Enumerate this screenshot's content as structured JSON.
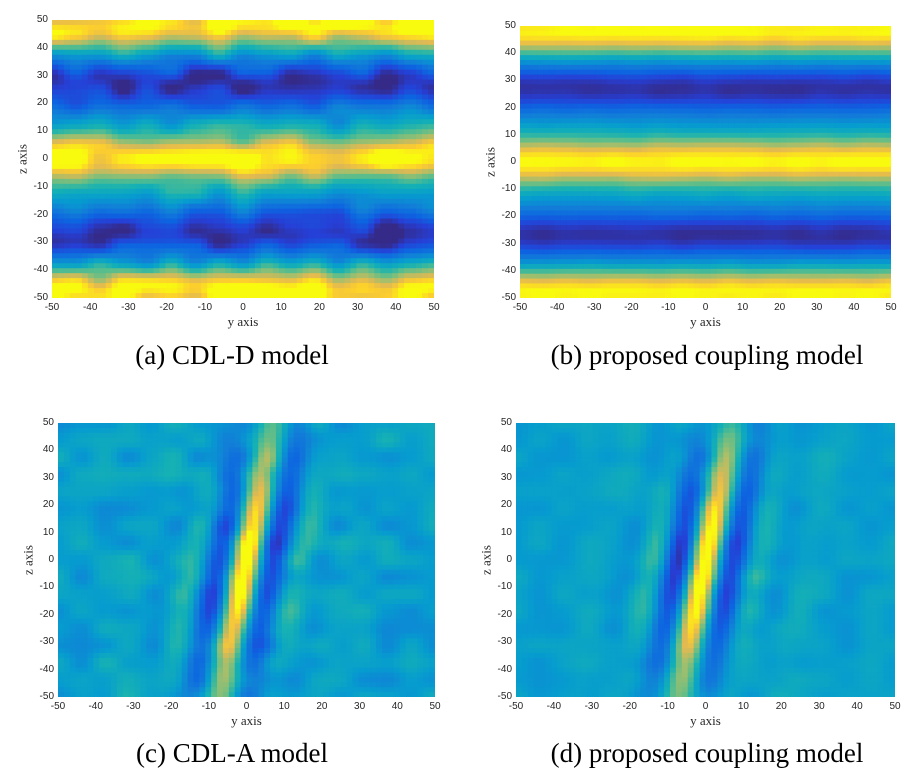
{
  "chart_data": [
    {
      "type": "heatmap",
      "id": "a",
      "caption": "(a) CDL-D model",
      "xlabel": "y axis",
      "ylabel": "z axis",
      "xlim": [
        -50,
        50
      ],
      "ylim": [
        -50,
        50
      ],
      "xticks": [
        "-50",
        "-40",
        "-30",
        "-20",
        "-10",
        "0",
        "10",
        "20",
        "30",
        "40",
        "50"
      ],
      "yticks": [
        "50",
        "40",
        "30",
        "20",
        "10",
        "0",
        "-10",
        "-20",
        "-30",
        "-40",
        "-50"
      ],
      "colormap": "parula",
      "pattern": "horizontal-bands",
      "peaks_z": [
        0,
        48,
        -48
      ],
      "troughs_z": [
        27,
        -27
      ],
      "noise": 0.11
    },
    {
      "type": "heatmap",
      "id": "b",
      "caption": "(b) proposed coupling model",
      "xlabel": "y axis",
      "ylabel": "z axis",
      "xlim": [
        -50,
        50
      ],
      "ylim": [
        -50,
        50
      ],
      "xticks": [
        "-50",
        "-40",
        "-30",
        "-20",
        "-10",
        "0",
        "10",
        "20",
        "30",
        "40",
        "50"
      ],
      "yticks": [
        "50",
        "40",
        "30",
        "20",
        "10",
        "0",
        "-10",
        "-20",
        "-30",
        "-40",
        "-50"
      ],
      "colormap": "parula",
      "pattern": "horizontal-bands",
      "peaks_z": [
        0,
        48,
        -48
      ],
      "troughs_z": [
        27,
        -27
      ],
      "noise": 0.02
    },
    {
      "type": "heatmap",
      "id": "c",
      "caption": "(c) CDL-A model",
      "xlabel": "y axis",
      "ylabel": "z axis",
      "xlim": [
        -50,
        50
      ],
      "ylim": [
        -50,
        50
      ],
      "xticks": [
        "-50",
        "-40",
        "-30",
        "-20",
        "-10",
        "0",
        "10",
        "20",
        "30",
        "40",
        "50"
      ],
      "yticks": [
        "50",
        "40",
        "30",
        "20",
        "10",
        "0",
        "-10",
        "-20",
        "-30",
        "-40",
        "-50"
      ],
      "colormap": "parula",
      "pattern": "tilted-stripes",
      "center_y": 0,
      "fringe_period": 15,
      "noise": 0.09
    },
    {
      "type": "heatmap",
      "id": "d",
      "caption": "(d) proposed coupling model",
      "xlabel": "y axis",
      "ylabel": "z axis",
      "xlim": [
        -50,
        50
      ],
      "ylim": [
        -50,
        50
      ],
      "xticks": [
        "-50",
        "-40",
        "-30",
        "-20",
        "-10",
        "0",
        "10",
        "20",
        "30",
        "40",
        "50"
      ],
      "yticks": [
        "50",
        "40",
        "30",
        "20",
        "10",
        "0",
        "-10",
        "-20",
        "-30",
        "-40",
        "-50"
      ],
      "colormap": "parula",
      "pattern": "tilted-stripes",
      "center_y": 0,
      "fringe_period": 15,
      "noise": 0.05
    }
  ]
}
